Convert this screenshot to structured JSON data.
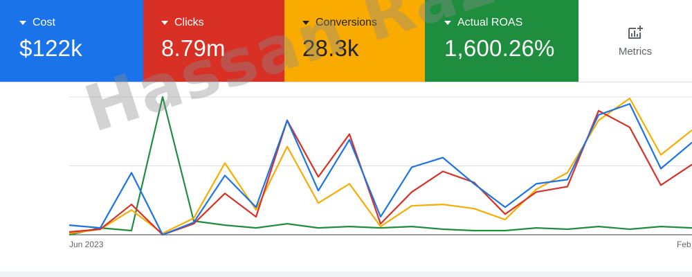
{
  "metrics": [
    {
      "label": "Cost",
      "value": "$122k",
      "color": "#1a73e8"
    },
    {
      "label": "Clicks",
      "value": "8.79m",
      "color": "#d93025"
    },
    {
      "label": "Conversions",
      "value": "28.3k",
      "color": "#f9ab00"
    },
    {
      "label": "Actual ROAS",
      "value": "1,600.26%",
      "color": "#1e8e3e"
    }
  ],
  "metrics_button": {
    "label": "Metrics",
    "icon": "add-chart-icon"
  },
  "watermark": "Hassan Raza",
  "chart_data": {
    "type": "line",
    "x_tick_labels": [
      "Jun 2023",
      "Feb"
    ],
    "grid": true,
    "y_range": [
      0,
      1
    ],
    "series": [
      {
        "metric": "Cost",
        "color": "#1a73e8",
        "values": [
          0.07,
          0.05,
          0.45,
          0.0,
          0.09,
          0.43,
          0.2,
          0.83,
          0.32,
          0.69,
          0.13,
          0.49,
          0.56,
          0.37,
          0.2,
          0.37,
          0.4,
          0.87,
          0.95,
          0.48,
          0.67
        ]
      },
      {
        "metric": "Clicks",
        "color": "#d93025",
        "values": [
          0.02,
          0.04,
          0.22,
          0.0,
          0.08,
          0.3,
          0.13,
          0.83,
          0.42,
          0.73,
          0.08,
          0.31,
          0.46,
          0.38,
          0.15,
          0.31,
          0.35,
          0.9,
          0.78,
          0.36,
          0.51
        ]
      },
      {
        "metric": "Conversions",
        "color": "#f9ab00",
        "values": [
          0.01,
          0.04,
          0.18,
          0.01,
          0.12,
          0.52,
          0.18,
          0.64,
          0.23,
          0.37,
          0.06,
          0.21,
          0.22,
          0.19,
          0.11,
          0.33,
          0.45,
          0.83,
          0.99,
          0.58,
          0.76
        ]
      },
      {
        "metric": "Actual ROAS",
        "color": "#1e8e3e",
        "values": [
          0.0,
          0.05,
          0.03,
          1.0,
          0.1,
          0.07,
          0.05,
          0.08,
          0.05,
          0.06,
          0.05,
          0.06,
          0.04,
          0.03,
          0.03,
          0.05,
          0.04,
          0.06,
          0.04,
          0.06,
          0.05
        ]
      }
    ]
  }
}
